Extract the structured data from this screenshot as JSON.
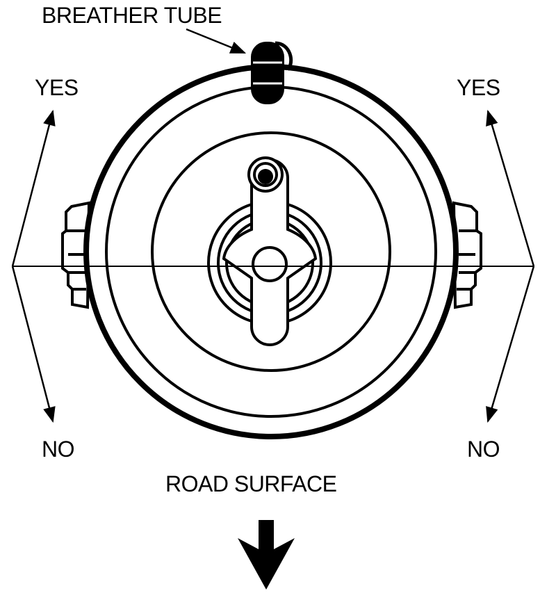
{
  "labels": {
    "breather_tube": "BREATHER TUBE",
    "yes_left": "YES",
    "yes_right": "YES",
    "no_left": "NO",
    "no_right": "NO",
    "road_surface": "ROAD SURFACE"
  },
  "colors": {
    "ink": "#000000",
    "paper": "#ffffff"
  }
}
